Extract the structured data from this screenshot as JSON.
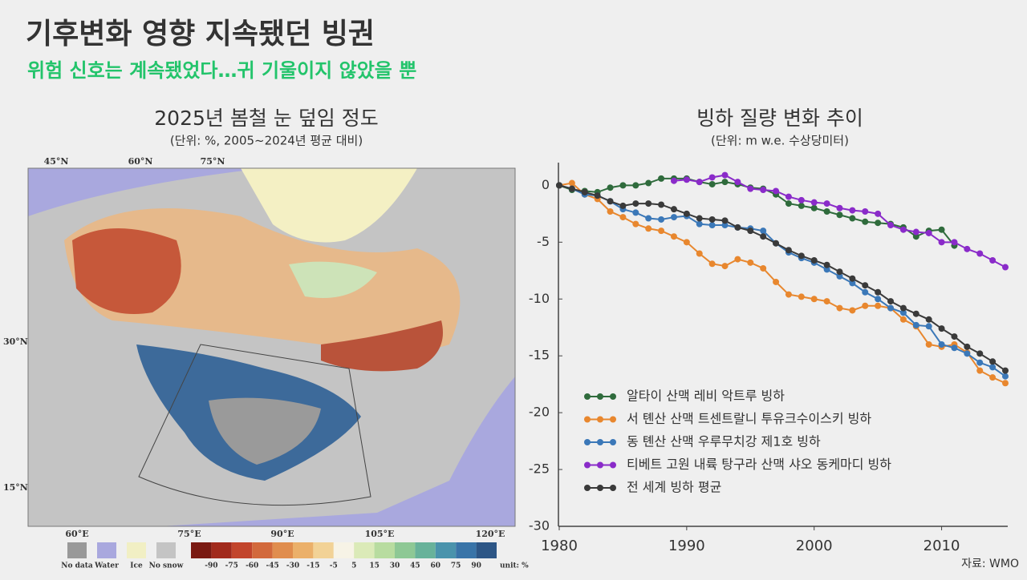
{
  "header": {
    "title": "기후변화 영향 지속됐던 빙권",
    "subtitle": "위험 신호는 계속됐었다…귀 기울이지 않았을 뿐"
  },
  "map": {
    "title": "2025년 봄철 눈 덮임 정도",
    "subtitle": "(단위: %, 2005~2024년 평균 대비)",
    "top_labels": [
      "45°N",
      "60°N",
      "75°N"
    ],
    "left_labels": [
      "30°N",
      "15°N"
    ],
    "bottom_labels": [
      "60°E",
      "75°E",
      "90°E",
      "105°E",
      "120°E"
    ],
    "legend": [
      "No data",
      "Water",
      "Ice",
      "No snow"
    ],
    "colorbar_ticks": [
      -90,
      -75,
      -60,
      -45,
      -30,
      -15,
      -5,
      5,
      15,
      30,
      45,
      60,
      75,
      90
    ],
    "unit": "unit: %"
  },
  "chart_data": {
    "type": "line",
    "title": "빙하 질량 변화 추이",
    "subtitle": "(단위: m w.e. 수상당미터)",
    "x": [
      1980,
      1981,
      1982,
      1983,
      1984,
      1985,
      1986,
      1987,
      1988,
      1989,
      1990,
      1991,
      1992,
      1993,
      1994,
      1995,
      1996,
      1997,
      1998,
      1999,
      2000,
      2001,
      2002,
      2003,
      2004,
      2005,
      2006,
      2007,
      2008,
      2009,
      2010,
      2011,
      2012,
      2013,
      2014,
      2015
    ],
    "xlim": [
      1980,
      2015
    ],
    "xticks": [
      1980,
      1990,
      2000,
      2010
    ],
    "ylim": [
      -30,
      2
    ],
    "yticks": [
      0,
      -5,
      -10,
      -15,
      -20,
      -25,
      -30
    ],
    "legend_position": "lower-left",
    "grid": false,
    "series": [
      {
        "name": "알타이 산맥 레비 악트루 빙하",
        "color": "#2f6b3c",
        "values": [
          0,
          -0.4,
          -0.5,
          -0.6,
          -0.2,
          0,
          0,
          0.2,
          0.6,
          0.6,
          0.6,
          0.3,
          0.1,
          0.3,
          0.1,
          -0.2,
          -0.3,
          -0.8,
          -1.6,
          -1.8,
          -2.0,
          -2.3,
          -2.6,
          -2.9,
          -3.2,
          -3.3,
          -3.4,
          -3.7,
          -4.5,
          -4.0,
          -3.9,
          -5.3,
          null,
          null,
          null,
          null
        ]
      },
      {
        "name": "서 톈산 산맥 트센트랄니 투유크수이스키 빙하",
        "color": "#e8872e",
        "values": [
          0,
          0.2,
          -0.8,
          -1.2,
          -2.3,
          -2.8,
          -3.4,
          -3.8,
          -4.0,
          -4.5,
          -5.0,
          -6.0,
          -6.9,
          -7.1,
          -6.5,
          -6.8,
          -7.3,
          -8.5,
          -9.6,
          -9.8,
          -10.0,
          -10.2,
          -10.8,
          -11.0,
          -10.6,
          -10.6,
          -10.8,
          -11.8,
          -12.4,
          -14.0,
          -14.2,
          -14.0,
          -14.7,
          -16.3,
          -16.9,
          -17.4
        ]
      },
      {
        "name": "동 톈산 산맥 우루무치강 제1호 빙하",
        "color": "#3b78b8",
        "values": [
          0,
          -0.3,
          -0.8,
          -0.9,
          -1.4,
          -2.1,
          -2.4,
          -2.9,
          -3.0,
          -2.8,
          -2.7,
          -3.4,
          -3.5,
          -3.5,
          -3.7,
          -3.8,
          -4.0,
          -5.1,
          -5.9,
          -6.4,
          -6.8,
          -7.4,
          -8.0,
          -8.6,
          -9.4,
          -10.0,
          -10.8,
          -11.2,
          -12.3,
          -12.4,
          -14.0,
          -14.3,
          -14.8,
          -15.6,
          -16.0,
          -16.8
        ]
      },
      {
        "name": "티베트 고원 내륙 탕구라 산맥 샤오 동케마디 빙하",
        "color": "#8a2bc9",
        "values": [
          null,
          null,
          null,
          null,
          null,
          null,
          null,
          null,
          null,
          0.4,
          0.5,
          0.3,
          0.7,
          0.9,
          0.3,
          -0.3,
          -0.4,
          -0.5,
          -1.0,
          -1.3,
          -1.5,
          -1.6,
          -2.0,
          -2.2,
          -2.3,
          -2.5,
          -3.5,
          -3.9,
          -4.1,
          -4.2,
          -5.0,
          -5.0,
          -5.6,
          -6.0,
          -6.6,
          -7.2
        ]
      },
      {
        "name": "전 세계 빙하 평균",
        "color": "#3a3a3a",
        "values": [
          0,
          -0.3,
          -0.6,
          -0.9,
          -1.4,
          -1.8,
          -1.6,
          -1.6,
          -1.7,
          -2.1,
          -2.5,
          -2.9,
          -3.0,
          -3.1,
          -3.7,
          -4.0,
          -4.5,
          -5.1,
          -5.7,
          -6.2,
          -6.6,
          -7.0,
          -7.6,
          -8.2,
          -8.8,
          -9.4,
          -10.2,
          -10.8,
          -11.3,
          -11.8,
          -12.6,
          -13.3,
          -14.2,
          -14.8,
          -15.5,
          -16.3
        ]
      }
    ],
    "source": "자료: WMO"
  }
}
